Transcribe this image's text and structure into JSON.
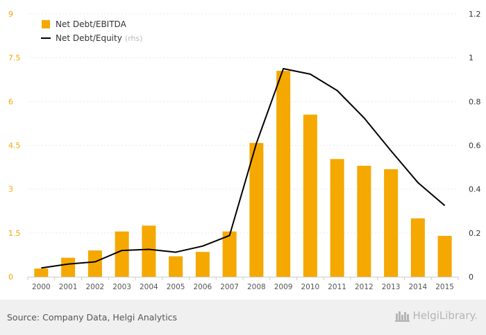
{
  "chart_data": {
    "type": "bar",
    "categories": [
      "2000",
      "2001",
      "2002",
      "2003",
      "2004",
      "2005",
      "2006",
      "2007",
      "2008",
      "2009",
      "2010",
      "2011",
      "2012",
      "2013",
      "2014",
      "2015"
    ],
    "series": [
      {
        "name": "Net Debt/EBITDA",
        "type": "bar",
        "axis": "left",
        "color": "#f5a800",
        "values": [
          0.28,
          0.65,
          0.9,
          1.55,
          1.75,
          0.7,
          0.85,
          1.55,
          4.58,
          7.05,
          5.55,
          4.03,
          3.8,
          3.68,
          2.0,
          1.4
        ]
      },
      {
        "name": "Net Debt/Equity",
        "suffix": "(rhs)",
        "type": "line",
        "axis": "right",
        "color": "#000000",
        "values": [
          0.04,
          0.058,
          0.068,
          0.12,
          0.125,
          0.112,
          0.14,
          0.188,
          0.61,
          0.95,
          0.925,
          0.85,
          0.725,
          0.575,
          0.43,
          0.325
        ]
      }
    ],
    "y_left": {
      "ticks": [
        "0",
        "1.5",
        "3",
        "4.5",
        "6",
        "7.5",
        "9"
      ],
      "ylim": [
        0,
        9
      ]
    },
    "y_right": {
      "ticks": [
        "0",
        "0.2",
        "0.4",
        "0.6",
        "0.8",
        "1",
        "1.2"
      ],
      "ylim": [
        0,
        1.2
      ]
    },
    "legend_position": "top-left",
    "grid": true
  },
  "footer": {
    "source": "Source: Company Data, Helgi Analytics",
    "brand": "HelgiLibrary."
  }
}
